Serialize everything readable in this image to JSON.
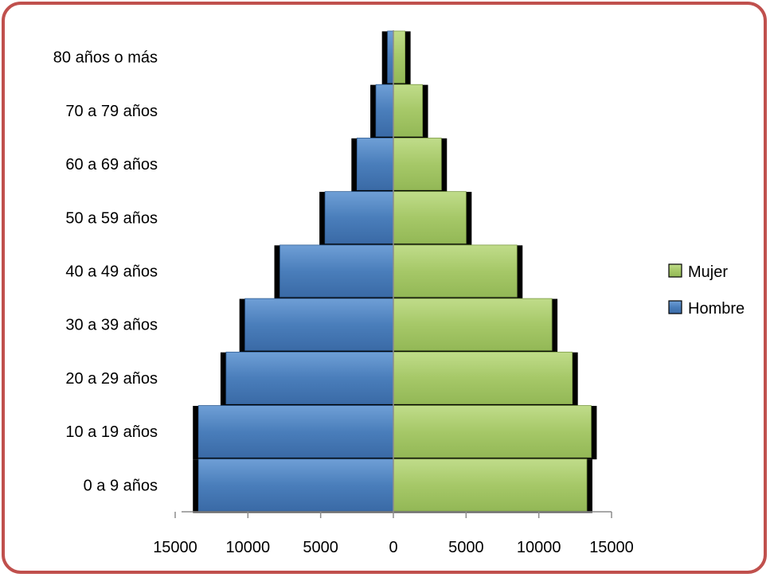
{
  "chart_data": {
    "type": "bar",
    "orientation": "horizontal-pyramid",
    "categories": [
      "0 a 9 años",
      "10 a 19 años",
      "20 a 29 años",
      "30 a 39 años",
      "40 a 49 años",
      "50 a 59 años",
      "60 a 69 años",
      "70 a 79 años",
      "80 años o más"
    ],
    "series": [
      {
        "name": "Hombre",
        "side": "left",
        "color": "#4a7ebb",
        "values": [
          13400,
          13400,
          11500,
          10200,
          7800,
          4700,
          2500,
          1200,
          400
        ]
      },
      {
        "name": "Mujer",
        "side": "right",
        "color": "#a6c868",
        "values": [
          13300,
          13600,
          12300,
          10900,
          8500,
          5000,
          3300,
          2000,
          800
        ]
      }
    ],
    "xlim": [
      -15000,
      15000
    ],
    "x_ticks": [
      "15000",
      "10000",
      "5000",
      "0",
      "5000",
      "10000",
      "15000"
    ],
    "x_tick_values": [
      -15000,
      -10000,
      -5000,
      0,
      5000,
      10000,
      15000
    ],
    "legend": {
      "placement": "right",
      "entries": [
        "Mujer",
        "Hombre"
      ]
    },
    "grid": false,
    "title": "",
    "xlabel": "",
    "ylabel": ""
  },
  "colors": {
    "frame_border": "#c0504d",
    "axis": "#8c8c8c",
    "shadow": "#000000"
  }
}
